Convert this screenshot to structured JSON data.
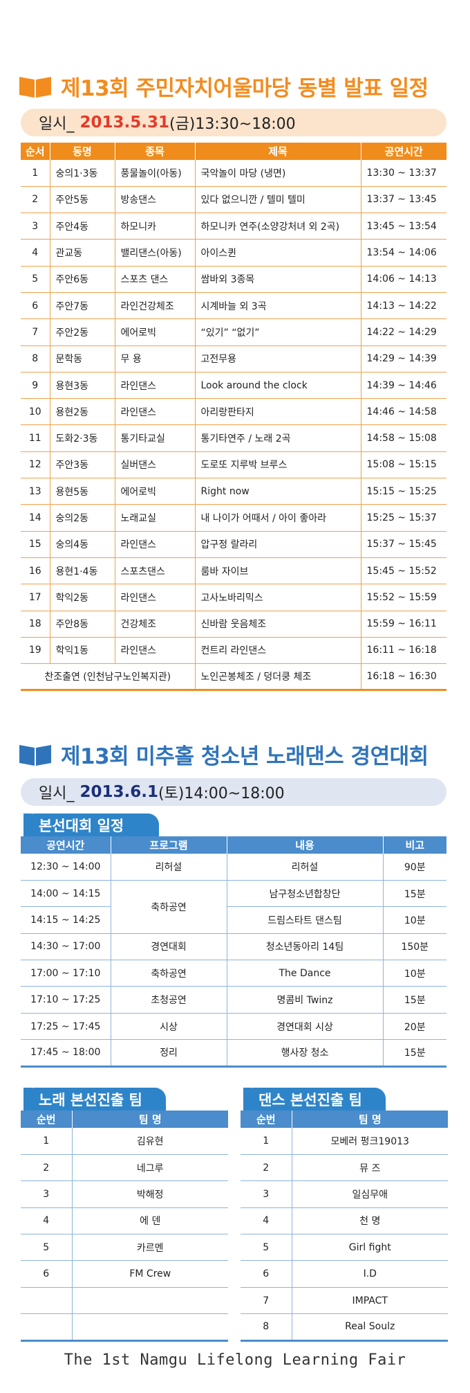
{
  "section1": {
    "title": "제13회 주민자치어울마당 동별 발표 일정",
    "date_label": "일시_",
    "date": "2013.5.31",
    "time": "(금)13:30~18:00",
    "headers": [
      "순서",
      "동명",
      "종목",
      "제목",
      "공연시간"
    ],
    "rows": [
      [
        "1",
        "숭의1·3동",
        "풍물놀이(아동)",
        "국악놀이 마당 (냉면)",
        "13:30 ~ 13:37"
      ],
      [
        "2",
        "주안5동",
        "방송댄스",
        "있다 없으니깐 / 텔미 텔미",
        "13:37 ~ 13:45"
      ],
      [
        "3",
        "주안4동",
        "하모니카",
        "하모니카 연주(소양강처녀 외 2곡)",
        "13:45 ~ 13:54"
      ],
      [
        "4",
        "관교동",
        "밸리댄스(아동)",
        "아이스퀸",
        "13:54 ~ 14:06"
      ],
      [
        "5",
        "주안6동",
        "스포츠 댄스",
        "쌈바외 3종목",
        "14:06 ~ 14:13"
      ],
      [
        "6",
        "주안7동",
        "라인건강체조",
        "시계바늘 외 3곡",
        "14:13 ~ 14:22"
      ],
      [
        "7",
        "주안2동",
        "에어로빅",
        "“있기” “없기”",
        "14:22 ~ 14:29"
      ],
      [
        "8",
        "문학동",
        "무 용",
        "고전무용",
        "14:29 ~ 14:39"
      ],
      [
        "9",
        "용현3동",
        "라인댄스",
        "Look around the clock",
        "14:39 ~ 14:46"
      ],
      [
        "10",
        "용현2동",
        "라인댄스",
        "아리랑판타지",
        "14:46 ~ 14:58"
      ],
      [
        "11",
        "도화2·3동",
        "통기타교실",
        "통기타연주 / 노래 2곡",
        "14:58 ~ 15:08"
      ],
      [
        "12",
        "주안3동",
        "실버댄스",
        "도로또 지루박 브루스",
        "15:08 ~ 15:15"
      ],
      [
        "13",
        "용현5동",
        "에어로빅",
        "Right now",
        "15:15 ~ 15:25"
      ],
      [
        "14",
        "숭의2동",
        "노래교실",
        "내 나이가 어때서 / 아이 좋아라",
        "15:25 ~ 15:37"
      ],
      [
        "15",
        "숭의4동",
        "라인댄스",
        "압구정 랄라리",
        "15:37 ~ 15:45"
      ],
      [
        "16",
        "용현1·4동",
        "스포츠댄스",
        "룸바 자이브",
        "15:45 ~ 15:52"
      ],
      [
        "17",
        "학익2동",
        "라인댄스",
        "고사노바리믹스",
        "15:52 ~ 15:59"
      ],
      [
        "18",
        "주안8동",
        "건강체조",
        "신바람 웃음체조",
        "15:59 ~ 16:11"
      ],
      [
        "19",
        "학익1동",
        "라인댄스",
        "컨트리 라인댄스",
        "16:11 ~ 16:18"
      ]
    ],
    "special_row": {
      "name": "찬조출연 (인천남구노인복지관)",
      "title": "노인곤봉체조 / 덩더쿵 체조",
      "time": "16:18 ~ 16:30"
    }
  },
  "section2": {
    "title": "제13회 미추홀 청소년 노래댄스 경연대회",
    "date_label": "일시_",
    "date": "2013.6.1",
    "time": "(토)14:00~18:00",
    "tab_main": "본선대회 일정",
    "headers": [
      "공연시간",
      "프로그램",
      "내용",
      "비고"
    ],
    "rows": [
      {
        "time": "12:30 ~ 14:00",
        "program": "리허설",
        "content": "리허설",
        "note": "90분"
      },
      {
        "time": "14:00 ~ 14:15",
        "program": "축하공연",
        "content": "남구청소년합창단",
        "note": "15분"
      },
      {
        "time": "14:15 ~ 14:25",
        "program": "",
        "content": "드림스타트 댄스팀",
        "note": "10분"
      },
      {
        "time": "14:30 ~ 17:00",
        "program": "경연대회",
        "content": "청소년동아리 14팀",
        "note": "150분"
      },
      {
        "time": "17:00 ~ 17:10",
        "program": "축하공연",
        "content": "The Dance",
        "note": "10분"
      },
      {
        "time": "17:10 ~ 17:25",
        "program": "초청공연",
        "content": "명콤비 Twinz",
        "note": "15분"
      },
      {
        "time": "17:25 ~ 17:45",
        "program": "시상",
        "content": "경연대회 시상",
        "note": "20분"
      },
      {
        "time": "17:45 ~ 18:00",
        "program": "정리",
        "content": "행사장 청소",
        "note": "15분"
      }
    ],
    "song_teams": {
      "tab": "노래 본선진출 팀",
      "headers": [
        "순번",
        "팀 명"
      ],
      "rows": [
        [
          "1",
          "김유현"
        ],
        [
          "2",
          "네그루"
        ],
        [
          "3",
          "박해정"
        ],
        [
          "4",
          "에 덴"
        ],
        [
          "5",
          "카르멘"
        ],
        [
          "6",
          "FM Crew"
        ],
        [
          "",
          ""
        ],
        [
          "",
          ""
        ]
      ]
    },
    "dance_teams": {
      "tab": "댄스 본선진출 팀",
      "headers": [
        "순번",
        "팀 명"
      ],
      "rows": [
        [
          "1",
          "모베러 펑크19013"
        ],
        [
          "2",
          "뮤 즈"
        ],
        [
          "3",
          "일심무애"
        ],
        [
          "4",
          "천 명"
        ],
        [
          "5",
          "Girl fight"
        ],
        [
          "6",
          "I.D"
        ],
        [
          "7",
          "IMPACT"
        ],
        [
          "8",
          "Real Soulz"
        ]
      ]
    }
  },
  "footer": "The 1st Namgu Lifelong Learning Fair",
  "colors": {
    "orange": "#f08c1c",
    "blue": "#4a8ccc",
    "red_date": "#e53a29",
    "navy_date": "#1b2f7a"
  }
}
